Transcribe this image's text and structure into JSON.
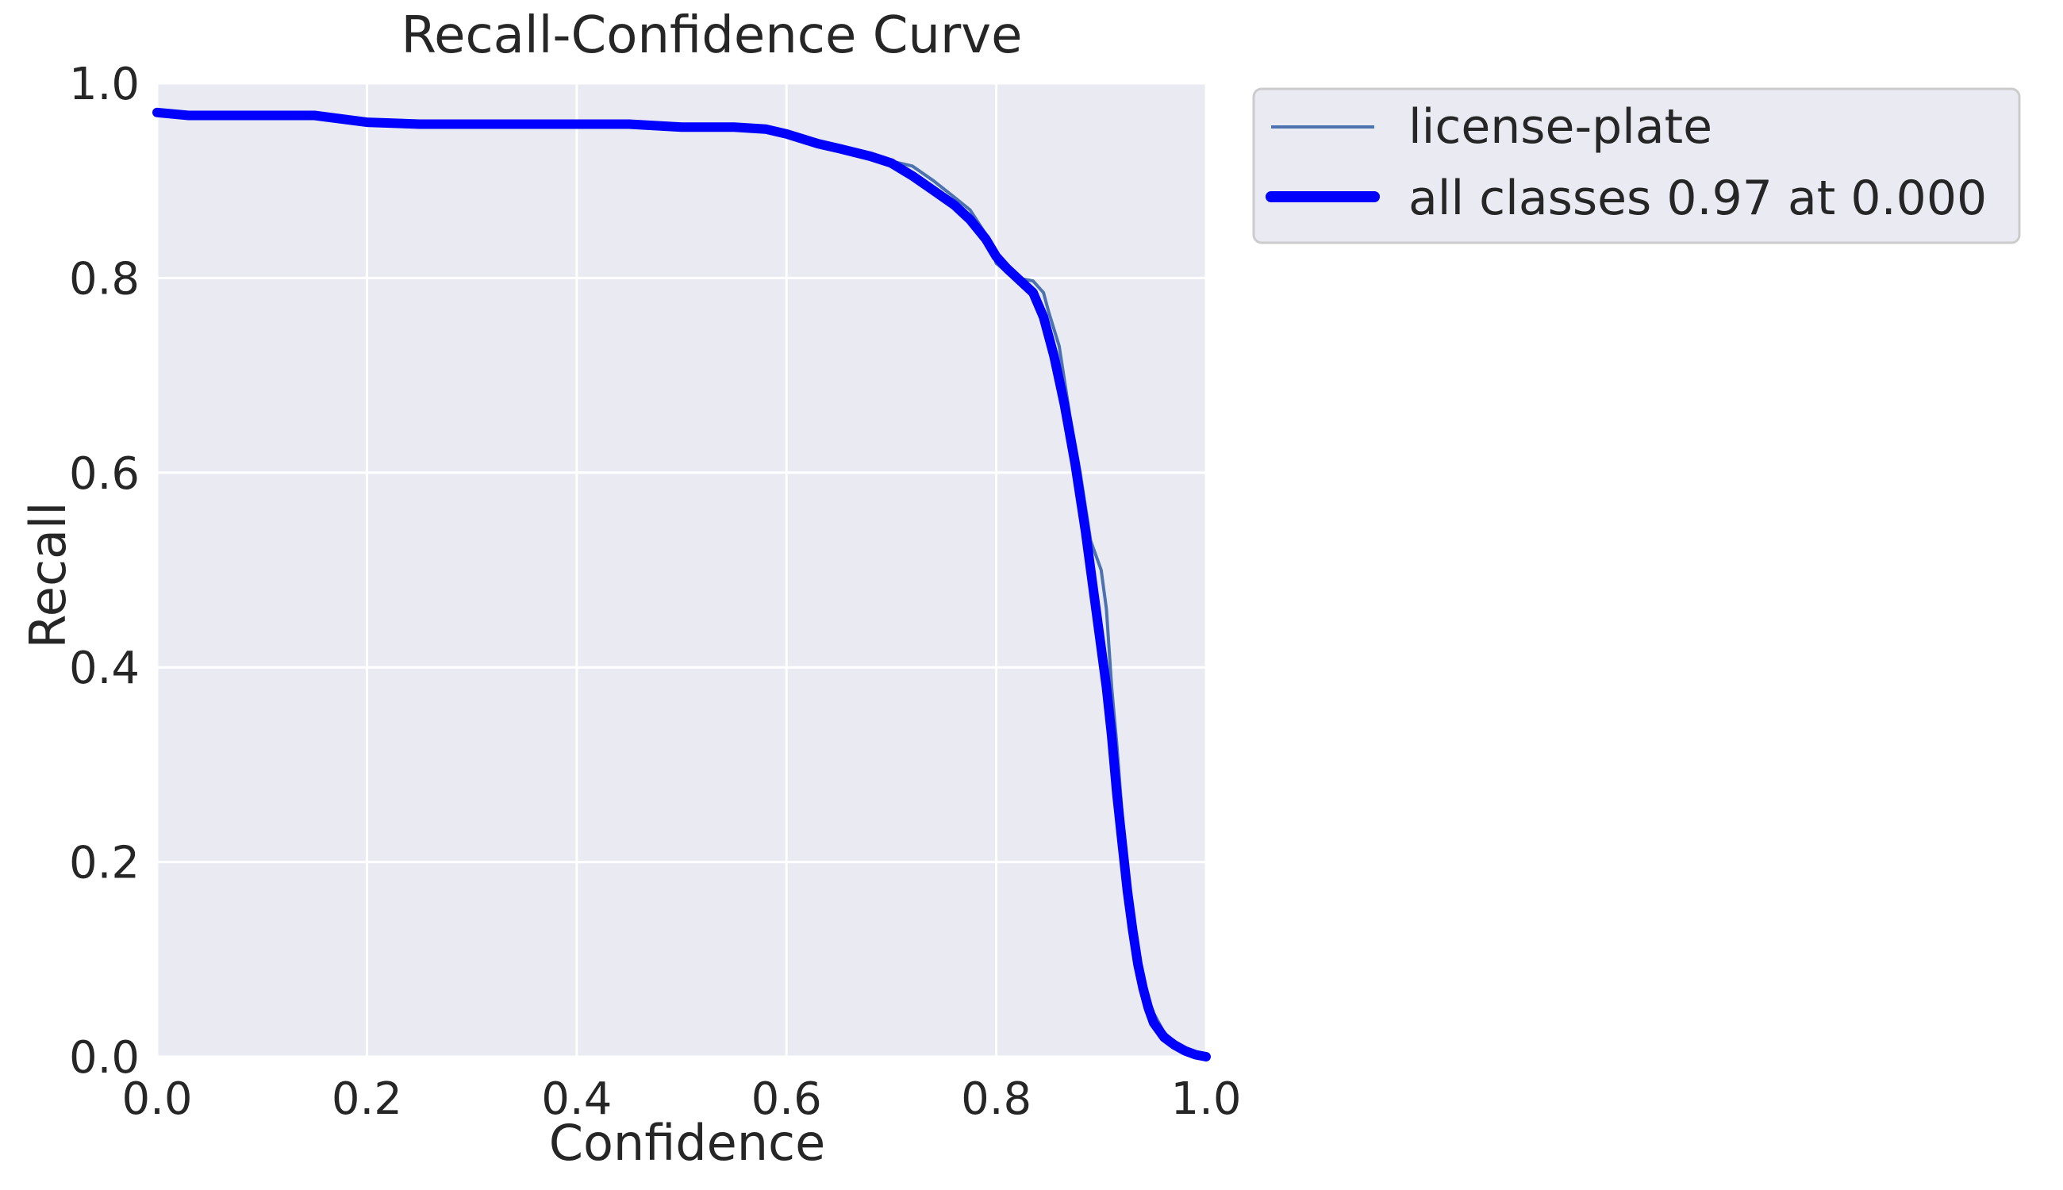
{
  "chart_data": {
    "type": "line",
    "title": "Recall-Confidence Curve",
    "xlabel": "Confidence",
    "ylabel": "Recall",
    "xlim": [
      0,
      1
    ],
    "ylim": [
      0,
      1
    ],
    "xticks": [
      "0.0",
      "0.2",
      "0.4",
      "0.6",
      "0.8",
      "1.0"
    ],
    "yticks": [
      "0.0",
      "0.2",
      "0.4",
      "0.6",
      "0.8",
      "1.0"
    ],
    "grid": true,
    "legend_position": "outside-top-right",
    "background_color": "#eaeaf2",
    "series": [
      {
        "name": "license-plate",
        "color": "#4c72b0",
        "x": [
          0.0,
          0.03,
          0.1,
          0.15,
          0.2,
          0.25,
          0.3,
          0.4,
          0.45,
          0.5,
          0.55,
          0.58,
          0.6,
          0.63,
          0.65,
          0.68,
          0.7,
          0.72,
          0.74,
          0.76,
          0.775,
          0.79,
          0.8,
          0.81,
          0.82,
          0.835,
          0.845,
          0.85,
          0.86,
          0.87,
          0.88,
          0.89,
          0.9,
          0.905,
          0.91,
          0.915,
          0.92,
          0.925,
          0.93,
          0.935,
          0.94,
          0.945,
          0.95,
          0.96,
          0.97,
          0.98,
          1.0
        ],
        "y": [
          0.97,
          0.967,
          0.967,
          0.967,
          0.96,
          0.958,
          0.958,
          0.958,
          0.958,
          0.955,
          0.955,
          0.953,
          0.948,
          0.938,
          0.933,
          0.925,
          0.92,
          0.915,
          0.9,
          0.883,
          0.87,
          0.845,
          0.815,
          0.806,
          0.8,
          0.797,
          0.785,
          0.765,
          0.73,
          0.66,
          0.6,
          0.53,
          0.5,
          0.46,
          0.38,
          0.32,
          0.25,
          0.18,
          0.13,
          0.08,
          0.07,
          0.06,
          0.045,
          0.025,
          0.015,
          0.005,
          0.0
        ]
      },
      {
        "name": "all classes 0.97 at 0.000",
        "color": "#0000ff",
        "x": [
          0.0,
          0.03,
          0.1,
          0.15,
          0.2,
          0.25,
          0.3,
          0.4,
          0.45,
          0.5,
          0.55,
          0.58,
          0.6,
          0.63,
          0.65,
          0.68,
          0.7,
          0.72,
          0.74,
          0.76,
          0.775,
          0.79,
          0.8,
          0.81,
          0.82,
          0.835,
          0.845,
          0.855,
          0.865,
          0.875,
          0.885,
          0.895,
          0.905,
          0.91,
          0.915,
          0.92,
          0.925,
          0.93,
          0.935,
          0.94,
          0.945,
          0.95,
          0.96,
          0.97,
          0.98,
          0.99,
          1.0
        ],
        "y": [
          0.97,
          0.967,
          0.967,
          0.967,
          0.96,
          0.958,
          0.958,
          0.958,
          0.958,
          0.955,
          0.955,
          0.953,
          0.948,
          0.938,
          0.933,
          0.925,
          0.918,
          0.905,
          0.89,
          0.875,
          0.86,
          0.84,
          0.822,
          0.81,
          0.8,
          0.785,
          0.76,
          0.72,
          0.67,
          0.61,
          0.54,
          0.46,
          0.38,
          0.33,
          0.27,
          0.22,
          0.17,
          0.13,
          0.095,
          0.07,
          0.05,
          0.035,
          0.02,
          0.012,
          0.006,
          0.002,
          0.0
        ]
      }
    ]
  }
}
